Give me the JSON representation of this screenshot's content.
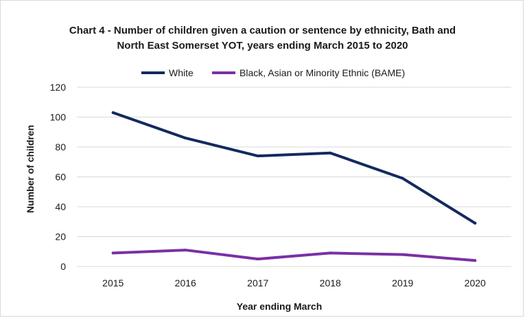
{
  "chart_data": {
    "type": "line",
    "title_line1": "Chart 4 - Number of children given a caution or sentence by ethnicity, Bath and",
    "title_line2": "North East Somerset YOT, years ending March 2015 to 2020",
    "xlabel": "Year ending March",
    "ylabel": "Number of children",
    "categories": [
      "2015",
      "2016",
      "2017",
      "2018",
      "2019",
      "2020"
    ],
    "ylim": [
      0,
      120
    ],
    "yticks": [
      "0",
      "20",
      "40",
      "60",
      "80",
      "100",
      "120"
    ],
    "grid": "horizontal",
    "legend_position": "top",
    "series": [
      {
        "name": "White",
        "color": "#132a5e",
        "values": [
          103,
          86,
          74,
          76,
          59,
          29
        ]
      },
      {
        "name": "Black, Asian or Minority Ethnic (BAME)",
        "color": "#7b2fa6",
        "values": [
          9,
          11,
          5,
          9,
          8,
          4
        ]
      }
    ]
  }
}
